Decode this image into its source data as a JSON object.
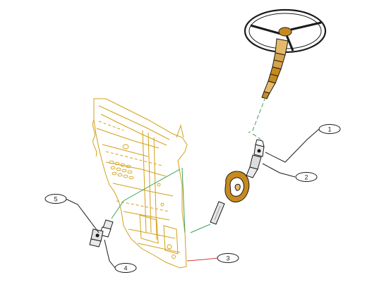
{
  "diagram": {
    "type": "exploded-assembly",
    "colors": {
      "outline": "#1a1a1a",
      "panel": "#d4a019",
      "steering": "#c78a1e",
      "centerline": "#3aa55a",
      "leader_red": "#d23a3a",
      "background": "#ffffff"
    },
    "callouts": [
      {
        "id": "1",
        "label": "1"
      },
      {
        "id": "2",
        "label": "2"
      },
      {
        "id": "3",
        "label": "3"
      },
      {
        "id": "4",
        "label": "4"
      },
      {
        "id": "5",
        "label": "5"
      }
    ],
    "components": [
      {
        "name": "steering-wheel"
      },
      {
        "name": "steering-column"
      },
      {
        "name": "upper-universal-joint"
      },
      {
        "name": "dash-seal-boot"
      },
      {
        "name": "intermediate-shaft"
      },
      {
        "name": "lower-universal-joint"
      },
      {
        "name": "dash-panel"
      }
    ]
  }
}
